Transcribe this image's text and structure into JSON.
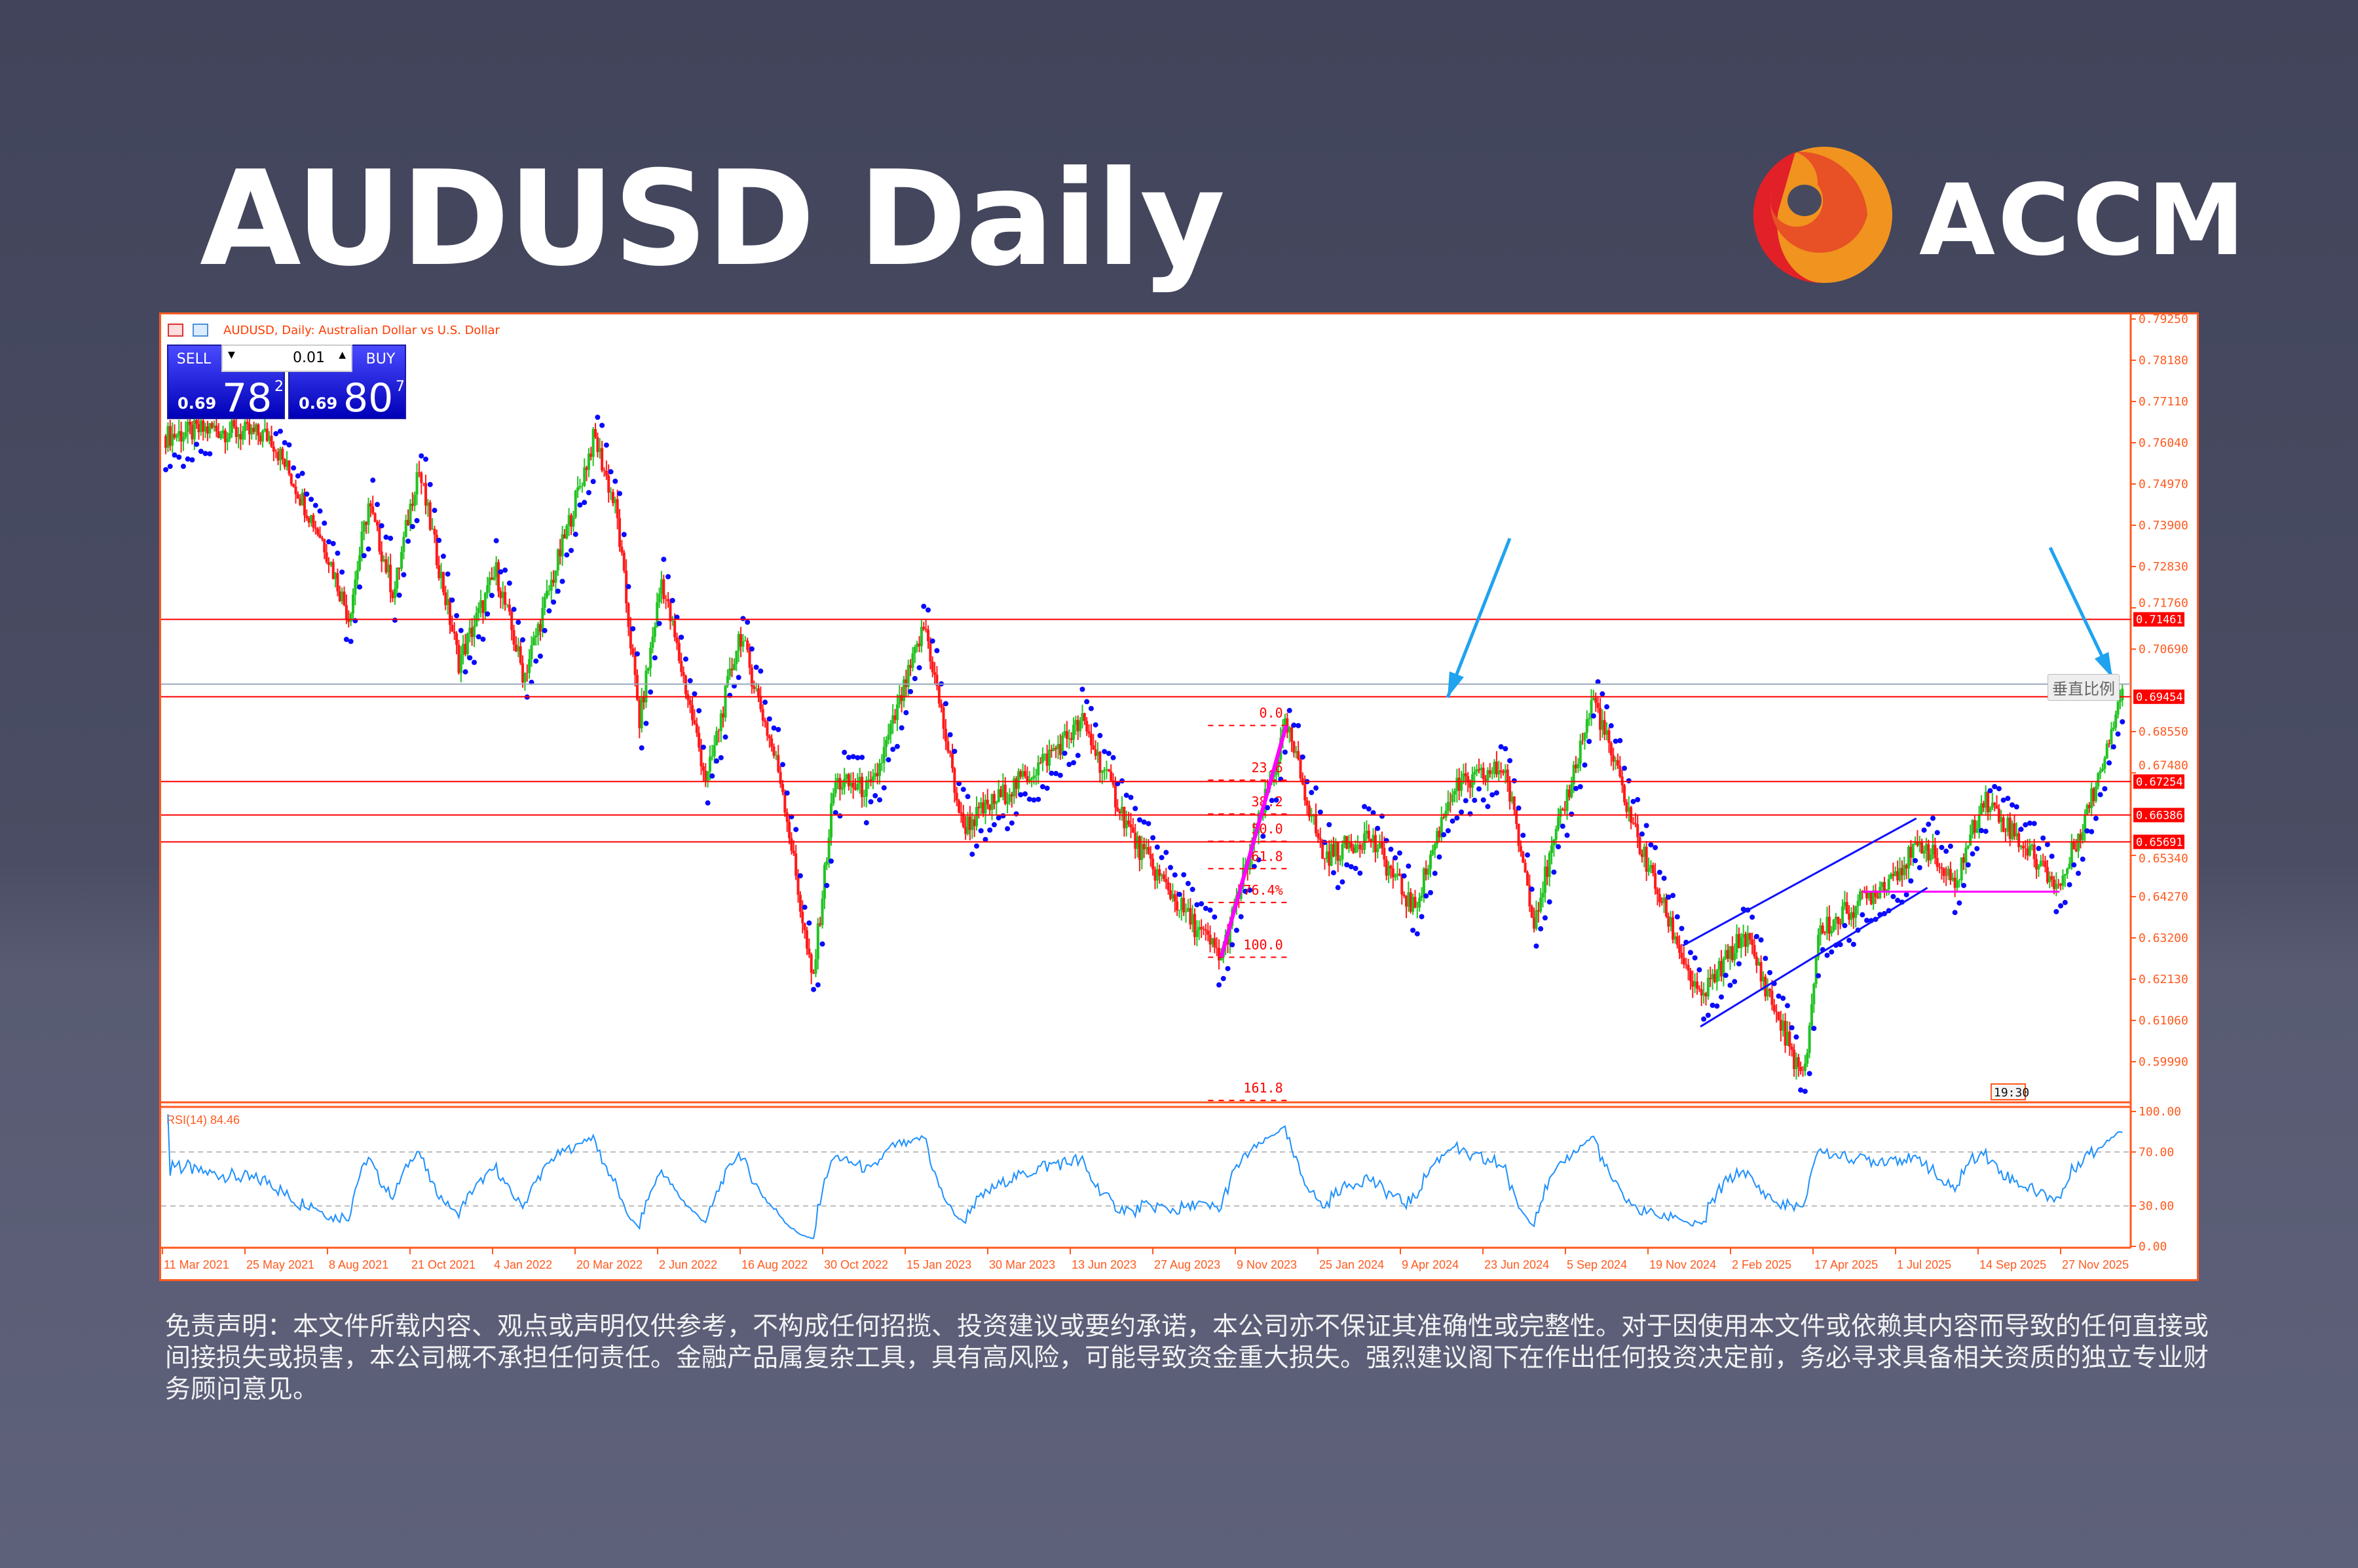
{
  "page": {
    "title": "AUDUSD Daily",
    "brand": "ACCM",
    "disclaimer": "免责声明：本文件所载内容、观点或声明仅供参考，不构成任何招揽、投资建议或要约承诺，本公司亦不保证其准确性或完整性。对于因使用本文件或依赖其内容而导致的任何直接或间接损失或损害，本公司概不承担任何责任。金融产品属复杂工具，具有高风险，可能导致资金重大损失。强烈建议阁下在作出任何投资决定前，务必寻求具备相关资质的独立专业财务顾问意见。"
  },
  "colors": {
    "frame": "#ff5a1f",
    "bull": "#22c322",
    "bear": "#ff1a1a",
    "sar": "#0a0aff",
    "fib": "#ff00ff",
    "level": "#ff0000",
    "rsi": "#1e90ff",
    "arrow": "#1fa3f0",
    "logo_red": "#e22028",
    "logo_orange": "#e85026",
    "logo_yellow": "#f0931f"
  },
  "terminal": {
    "header": "AUDUSD, Daily:  Australian Dollar vs U.S. Dollar",
    "sell": {
      "label": "SELL",
      "prefix": "0.69",
      "big": "78",
      "sup": "2"
    },
    "buy": {
      "label": "BUY",
      "prefix": "0.69",
      "big": "80",
      "sup": "7"
    },
    "lot": "0.01",
    "tooltip": "垂直比例",
    "time_marker": "19:30"
  },
  "chart_data": {
    "type": "line",
    "title": "AUDUSD, Daily",
    "xlabel": "",
    "ylabel": "",
    "ylim": [
      0.5935,
      0.7945
    ],
    "yticks": [
      "0.79250",
      "0.78180",
      "0.77110",
      "0.76040",
      "0.74970",
      "0.73900",
      "0.72830",
      "0.71760",
      "0.70690",
      "0.68550",
      "0.67480",
      "0.65340",
      "0.64270",
      "0.63200",
      "0.62130",
      "0.61060",
      "0.59990"
    ],
    "xticks": [
      "11 Mar 2021",
      "25 May 2021",
      "8 Aug 2021",
      "21 Oct 2021",
      "4 Jan 2022",
      "20 Mar 2022",
      "2 Jun 2022",
      "16 Aug 2022",
      "30 Oct 2022",
      "15 Jan 2023",
      "30 Mar 2023",
      "13 Jun 2023",
      "27 Aug 2023",
      "9 Nov 2023",
      "25 Jan 2024",
      "9 Apr 2024",
      "23 Jun 2024",
      "5 Sep 2024",
      "19 Nov 2024",
      "2 Feb 2025",
      "17 Apr 2025",
      "1 Jul 2025",
      "14 Sep 2025",
      "27 Nov 2025"
    ],
    "series": [
      {
        "values": [
          [
            "2021-03-14",
            0.7621
          ],
          [
            "2021-04-24",
            0.764
          ],
          [
            "2021-06-17",
            0.7621
          ],
          [
            "2021-08-04",
            0.7348
          ],
          [
            "2021-08-27",
            0.7153
          ],
          [
            "2021-09-14",
            0.7445
          ],
          [
            "2021-10-07",
            0.7211
          ],
          [
            "2021-10-29",
            0.7543
          ],
          [
            "2021-12-05",
            0.7036
          ],
          [
            "2022-01-08",
            0.727
          ],
          [
            "2022-02-02",
            0.6997
          ],
          [
            "2022-03-06",
            0.7309
          ],
          [
            "2022-04-07",
            0.7621
          ],
          [
            "2022-04-27",
            0.7426
          ],
          [
            "2022-05-18",
            0.688
          ],
          [
            "2022-06-07",
            0.725
          ],
          [
            "2022-07-18",
            0.6724
          ],
          [
            "2022-08-17",
            0.7114
          ],
          [
            "2022-09-24",
            0.6724
          ],
          [
            "2022-10-22",
            0.6197
          ],
          [
            "2022-11-11",
            0.6724
          ],
          [
            "2022-12-15",
            0.6704
          ],
          [
            "2023-02-01",
            0.7133
          ],
          [
            "2023-03-07",
            0.6606
          ],
          [
            "2023-05-14",
            0.6763
          ],
          [
            "2023-06-24",
            0.688
          ],
          [
            "2023-08-11",
            0.6567
          ],
          [
            "2023-09-28",
            0.6372
          ],
          [
            "2023-10-28",
            0.627
          ],
          [
            "2023-12-26",
            0.6871
          ],
          [
            "2024-01-29",
            0.6528
          ],
          [
            "2024-03-10",
            0.6587
          ],
          [
            "2024-04-20",
            0.6392
          ],
          [
            "2024-05-24",
            0.6704
          ],
          [
            "2024-07-11",
            0.6763
          ],
          [
            "2024-08-07",
            0.6372
          ],
          [
            "2024-09-30",
            0.6942
          ],
          [
            "2024-11-10",
            0.6567
          ],
          [
            "2025-01-04",
            0.6158
          ],
          [
            "2025-02-14",
            0.6333
          ],
          [
            "2025-04-09",
            0.5943
          ],
          [
            "2025-04-22",
            0.6333
          ],
          [
            "2025-06-16",
            0.645
          ],
          [
            "2025-07-27",
            0.6567
          ],
          [
            "2025-08-23",
            0.645
          ],
          [
            "2025-09-19",
            0.6685
          ],
          [
            "2025-11-27",
            0.645
          ],
          [
            "2025-12-31",
            0.6724
          ],
          [
            "2026-01-23",
            0.6978
          ]
        ]
      }
    ],
    "levels": [
      {
        "price": 0.71461,
        "label": "0.71461"
      },
      {
        "price": 0.69454,
        "label": "0.69454"
      },
      {
        "price": 0.67254,
        "label": "0.67254"
      },
      {
        "price": 0.66386,
        "label": "0.66386"
      },
      {
        "price": 0.65691,
        "label": "0.65691"
      }
    ],
    "bid_line": 0.69782,
    "fibonacci": {
      "from": [
        "2023-10-28",
        0.627
      ],
      "to": [
        "2023-12-26",
        0.6871
      ],
      "levels": [
        {
          "r": 0,
          "label": "0.0"
        },
        {
          "r": 0.236,
          "label": "23.6"
        },
        {
          "r": 0.382,
          "label": "38.2"
        },
        {
          "r": 0.5,
          "label": "50.0"
        },
        {
          "r": 0.618,
          "label": "61.8"
        },
        {
          "r": 0.764,
          "label": "76.4%"
        },
        {
          "r": 1,
          "label": "100.0"
        },
        {
          "r": 1.618,
          "label": "161.8"
        }
      ]
    },
    "support_line": {
      "price": 0.644,
      "from": "2025-06-01",
      "to": "2025-11-27"
    },
    "rsi": {
      "label": "RSI(14) 84.46",
      "period": 14,
      "value": 84.46,
      "ylim": [
        0,
        100
      ],
      "levels": [
        30,
        70
      ],
      "yticks": [
        "100.00",
        "70.00",
        "30.00",
        "0.00"
      ]
    },
    "grid": false
  }
}
